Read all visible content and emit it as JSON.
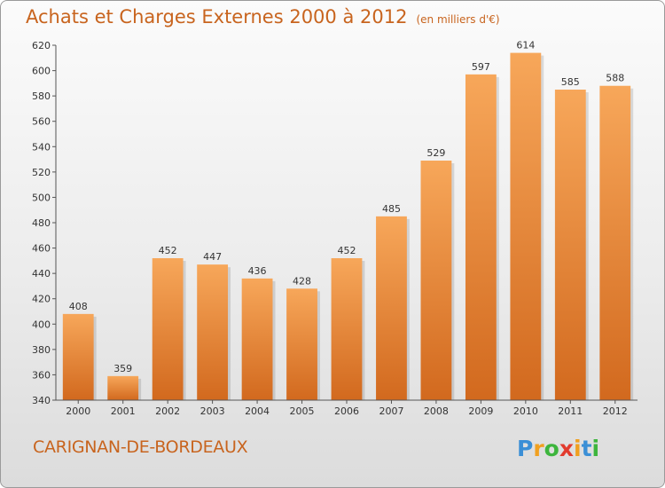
{
  "title": "Achats et Charges Externes 2000 à 2012",
  "subtitle": "(en milliers d'€)",
  "commune": "CARIGNAN-DE-BORDEAUX",
  "logo": {
    "letters": [
      {
        "ch": "P",
        "color": "#3b8fd6"
      },
      {
        "ch": "r",
        "color": "#f0a020"
      },
      {
        "ch": "o",
        "color": "#3db53d"
      },
      {
        "ch": "x",
        "color": "#e23b2e"
      },
      {
        "ch": "i",
        "color": "#f0a020"
      },
      {
        "ch": "t",
        "color": "#3b8fd6"
      },
      {
        "ch": "i",
        "color": "#3db53d"
      }
    ]
  },
  "chart_data": {
    "type": "bar",
    "categories": [
      "2000",
      "2001",
      "2002",
      "2003",
      "2004",
      "2005",
      "2006",
      "2007",
      "2008",
      "2009",
      "2010",
      "2011",
      "2012"
    ],
    "values": [
      408,
      359,
      452,
      447,
      436,
      428,
      452,
      485,
      529,
      597,
      614,
      585,
      588
    ],
    "ylim": [
      340,
      620
    ],
    "yticks": [
      340,
      360,
      380,
      400,
      420,
      440,
      460,
      480,
      500,
      520,
      540,
      560,
      580,
      600,
      620
    ],
    "grid": false,
    "bar_color_top": "#f7a75a",
    "bar_color_bottom": "#d2691e"
  }
}
